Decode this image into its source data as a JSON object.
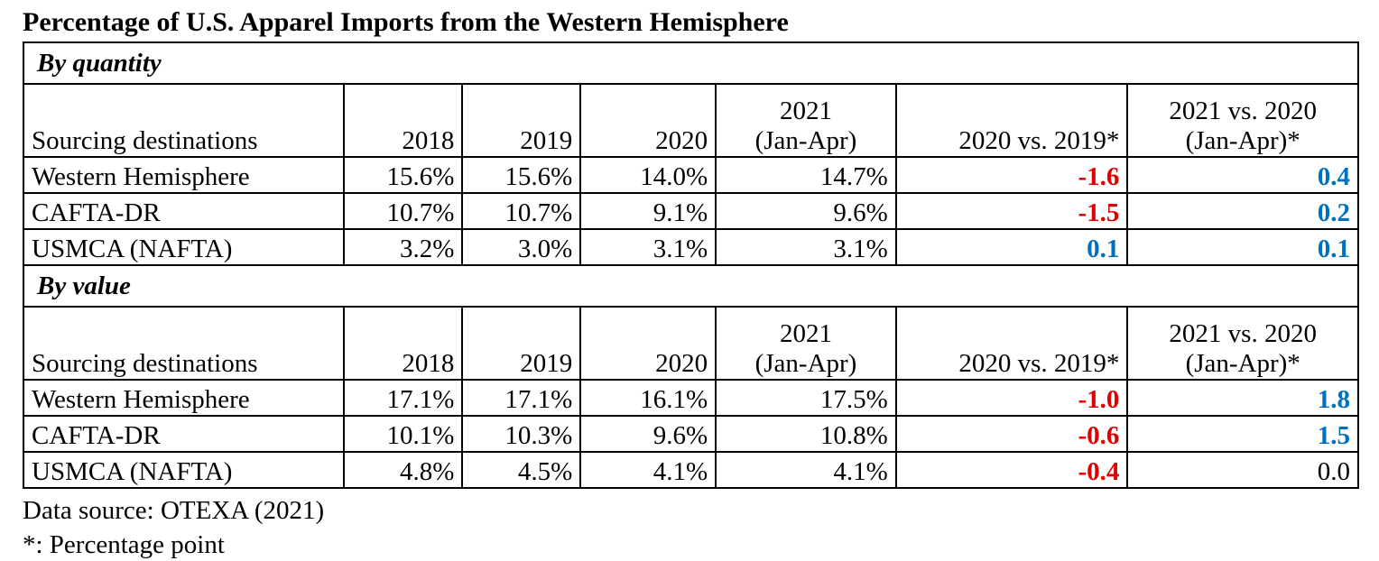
{
  "title": "Percentage of U.S. Apparel Imports from the Western Hemisphere",
  "colors": {
    "negative": "#e00000",
    "positive": "#0070c0"
  },
  "chart_data": {
    "type": "table",
    "title": "Percentage of U.S. Apparel Imports from the Western Hemisphere",
    "columns": [
      "Sourcing destinations",
      "2018",
      "2019",
      "2020",
      "2021 (Jan-Apr)",
      "2020 vs. 2019*",
      "2021 vs. 2020 (Jan-Apr)*"
    ],
    "sections": [
      {
        "label": "By quantity",
        "header": [
          "Sourcing destinations",
          "2018",
          "2019",
          "2020",
          "2021\n(Jan-Apr)",
          "2020 vs. 2019*",
          "2021 vs. 2020\n(Jan-Apr)*"
        ],
        "rows": [
          {
            "cells": [
              "Western Hemisphere",
              "15.6%",
              "15.6%",
              "14.0%",
              "14.7%",
              "-1.6",
              "0.4"
            ],
            "styles": [
              "neg",
              "pos"
            ]
          },
          {
            "cells": [
              "CAFTA-DR",
              "10.7%",
              "10.7%",
              "9.1%",
              "9.6%",
              "-1.5",
              "0.2"
            ],
            "styles": [
              "neg",
              "pos"
            ]
          },
          {
            "cells": [
              "USMCA (NAFTA)",
              "3.2%",
              "3.0%",
              "3.1%",
              "3.1%",
              "0.1",
              "0.1"
            ],
            "styles": [
              "pos",
              "pos"
            ]
          }
        ]
      },
      {
        "label": "By value",
        "header": [
          "Sourcing destinations",
          "2018",
          "2019",
          "2020",
          "2021\n(Jan-Apr)",
          "2020 vs. 2019*",
          "2021 vs. 2020\n(Jan-Apr)*"
        ],
        "rows": [
          {
            "cells": [
              "Western Hemisphere",
              "17.1%",
              "17.1%",
              "16.1%",
              "17.5%",
              "-1.0",
              "1.8"
            ],
            "styles": [
              "neg",
              "pos"
            ]
          },
          {
            "cells": [
              "CAFTA-DR",
              "10.1%",
              "10.3%",
              "9.6%",
              "10.8%",
              "-0.6",
              "1.5"
            ],
            "styles": [
              "neg",
              "pos"
            ]
          },
          {
            "cells": [
              "USMCA (NAFTA)",
              "4.8%",
              "4.5%",
              "4.1%",
              "4.1%",
              "-0.4",
              "0.0"
            ],
            "styles": [
              "neg",
              ""
            ]
          }
        ]
      }
    ]
  },
  "footnotes": {
    "source": "Data source: OTEXA (2021)",
    "note": "*: Percentage point"
  }
}
